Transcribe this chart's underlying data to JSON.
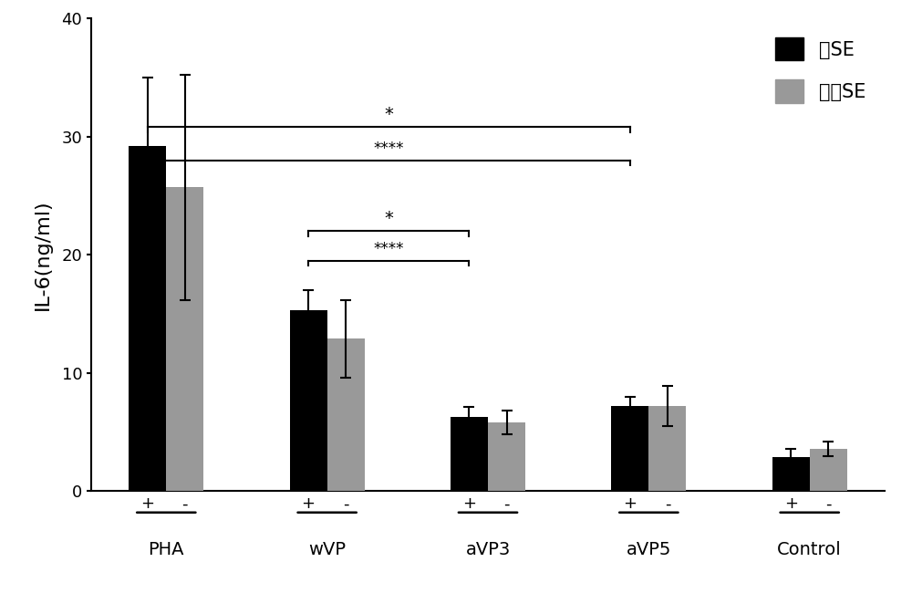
{
  "groups": [
    "PHA",
    "wVP",
    "aVP3",
    "aVP5",
    "Control"
  ],
  "black_values": [
    29.2,
    15.3,
    6.3,
    7.2,
    2.9
  ],
  "gray_values": [
    25.7,
    12.9,
    5.8,
    7.2,
    3.6
  ],
  "black_errors": [
    5.8,
    1.7,
    0.8,
    0.8,
    0.7
  ],
  "gray_errors": [
    9.5,
    3.3,
    1.0,
    1.7,
    0.6
  ],
  "black_color": "#000000",
  "gray_color": "#999999",
  "ylabel": "IL-6(ng/ml)",
  "ylim": [
    0,
    40
  ],
  "yticks": [
    0,
    10,
    20,
    30,
    40
  ],
  "legend_labels": [
    "含SE",
    "不含SE"
  ],
  "bar_width": 0.35,
  "background_color": "#ffffff",
  "font_size": 14,
  "tick_font_size": 13
}
